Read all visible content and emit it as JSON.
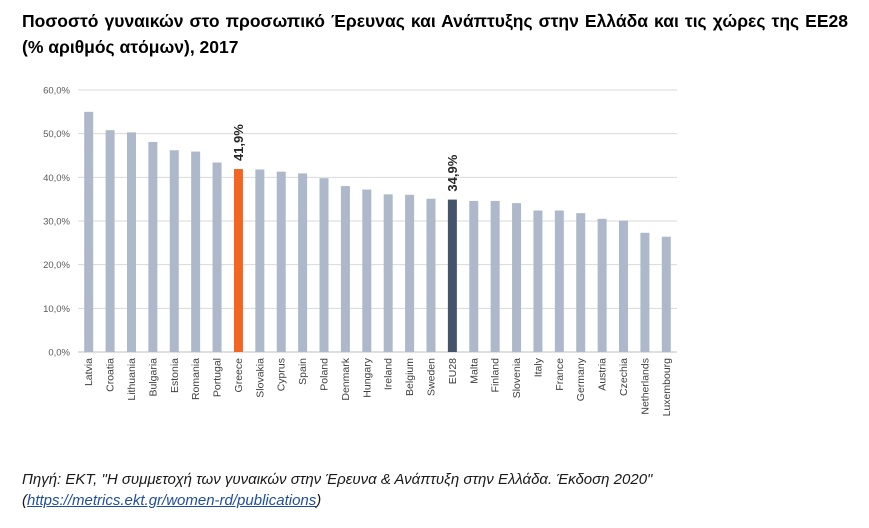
{
  "title": "Ποσοστό γυναικών στο προσωπικό Έρευνας και Ανάπτυξης στην Ελλάδα και τις χώρες της ΕΕ28 (% αριθμός ατόμων), 2017",
  "source": {
    "text": "Πηγή: ΕΚΤ, \"Η συμμετοχή των γυναικών στην Έρευνα & Ανάπτυξη στην Ελλάδα. Έκδοση 2020\"",
    "link_open": "(",
    "link": "https://metrics.ekt.gr/women-rd/publications",
    "link_close": ")"
  },
  "chart_data": {
    "type": "bar",
    "title": "Ποσοστό γυναικών στο προσωπικό Έρευνας και Ανάπτυξης στην Ελλάδα και τις χώρες της ΕΕ28 (% αριθμός ατόμων), 2017",
    "xlabel": "",
    "ylabel": "",
    "ylim": [
      0,
      60
    ],
    "yticks": [
      "0,0%",
      "10,0%",
      "20,0%",
      "30,0%",
      "40,0%",
      "50,0%",
      "60,0%"
    ],
    "grid": true,
    "categories": [
      "Latvia",
      "Croatia",
      "Lithuania",
      "Bulgaria",
      "Estonia",
      "Romania",
      "Portugal",
      "Greece",
      "Slovakia",
      "Cyprus",
      "Spain",
      "Poland",
      "Denmark",
      "Hungary",
      "Ireland",
      "Belgium",
      "Sweden",
      "EU28",
      "Malta",
      "Finland",
      "Slovenia",
      "Italy",
      "France",
      "Germany",
      "Austria",
      "Czechia",
      "Netherlands",
      "Luxembourg"
    ],
    "values": [
      55.0,
      50.8,
      50.3,
      48.1,
      46.2,
      45.9,
      43.4,
      41.9,
      41.8,
      41.3,
      40.9,
      39.8,
      38.0,
      37.2,
      36.1,
      36.0,
      35.1,
      34.9,
      34.6,
      34.6,
      34.1,
      32.4,
      32.4,
      31.8,
      30.5,
      30.1,
      27.3,
      26.4
    ],
    "data_labels": [
      {
        "category": "Greece",
        "text": "41,9%"
      },
      {
        "category": "EU28",
        "text": "34,9%"
      }
    ],
    "colors": {
      "default": "#adb9ca",
      "Greece": "#f26522",
      "EU28": "#44546a",
      "grid": "#d9d9d9"
    }
  }
}
